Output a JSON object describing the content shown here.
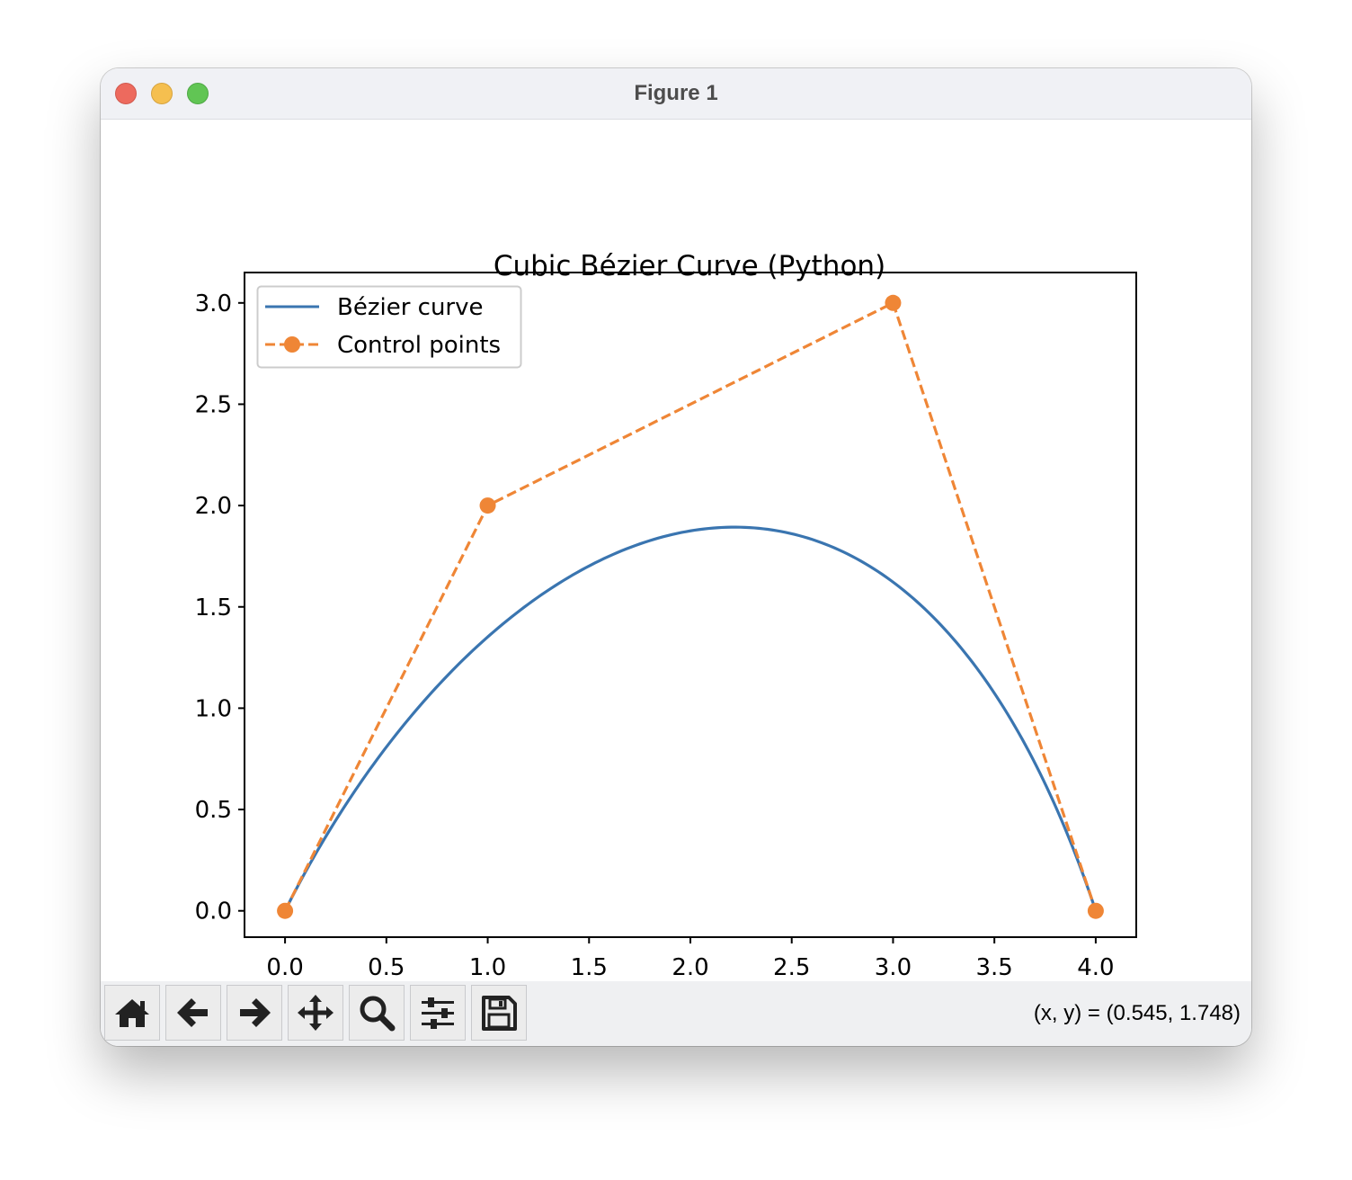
{
  "window": {
    "title": "Figure 1"
  },
  "toolbar": {
    "buttons": [
      {
        "name": "home-button",
        "icon": "home-icon"
      },
      {
        "name": "back-button",
        "icon": "arrow-left-icon"
      },
      {
        "name": "forward-button",
        "icon": "arrow-right-icon"
      },
      {
        "name": "pan-button",
        "icon": "move-icon"
      },
      {
        "name": "zoom-button",
        "icon": "magnifier-icon"
      },
      {
        "name": "configure-subplots-button",
        "icon": "sliders-icon"
      },
      {
        "name": "save-button",
        "icon": "floppy-disk-icon"
      }
    ],
    "coords_text": "(x, y) = (0.545, 1.748)"
  },
  "chart_data": {
    "type": "line",
    "title": "Cubic Bézier Curve (Python)",
    "xlabel": "",
    "ylabel": "",
    "xlim": [
      -0.2,
      4.2
    ],
    "ylim": [
      -0.13,
      3.15
    ],
    "xticks": [
      "0.0",
      "0.5",
      "1.0",
      "1.5",
      "2.0",
      "2.5",
      "3.0",
      "3.5",
      "4.0"
    ],
    "yticks": [
      "0.0",
      "0.5",
      "1.0",
      "1.5",
      "2.0",
      "2.5",
      "3.0"
    ],
    "legend_position": "upper-left",
    "grid": false,
    "colors": {
      "curve": "#3a75b0",
      "control": "#ef8636"
    },
    "series": [
      {
        "name": "Bézier curve",
        "style": "solid",
        "control_points_source": [
          [
            0,
            0
          ],
          [
            1,
            2
          ],
          [
            3,
            3
          ],
          [
            4,
            0
          ]
        ]
      },
      {
        "name": "Control points",
        "style": "dashed-with-circles",
        "x": [
          0,
          1,
          3,
          4
        ],
        "y": [
          0,
          2,
          3,
          0
        ]
      }
    ]
  }
}
